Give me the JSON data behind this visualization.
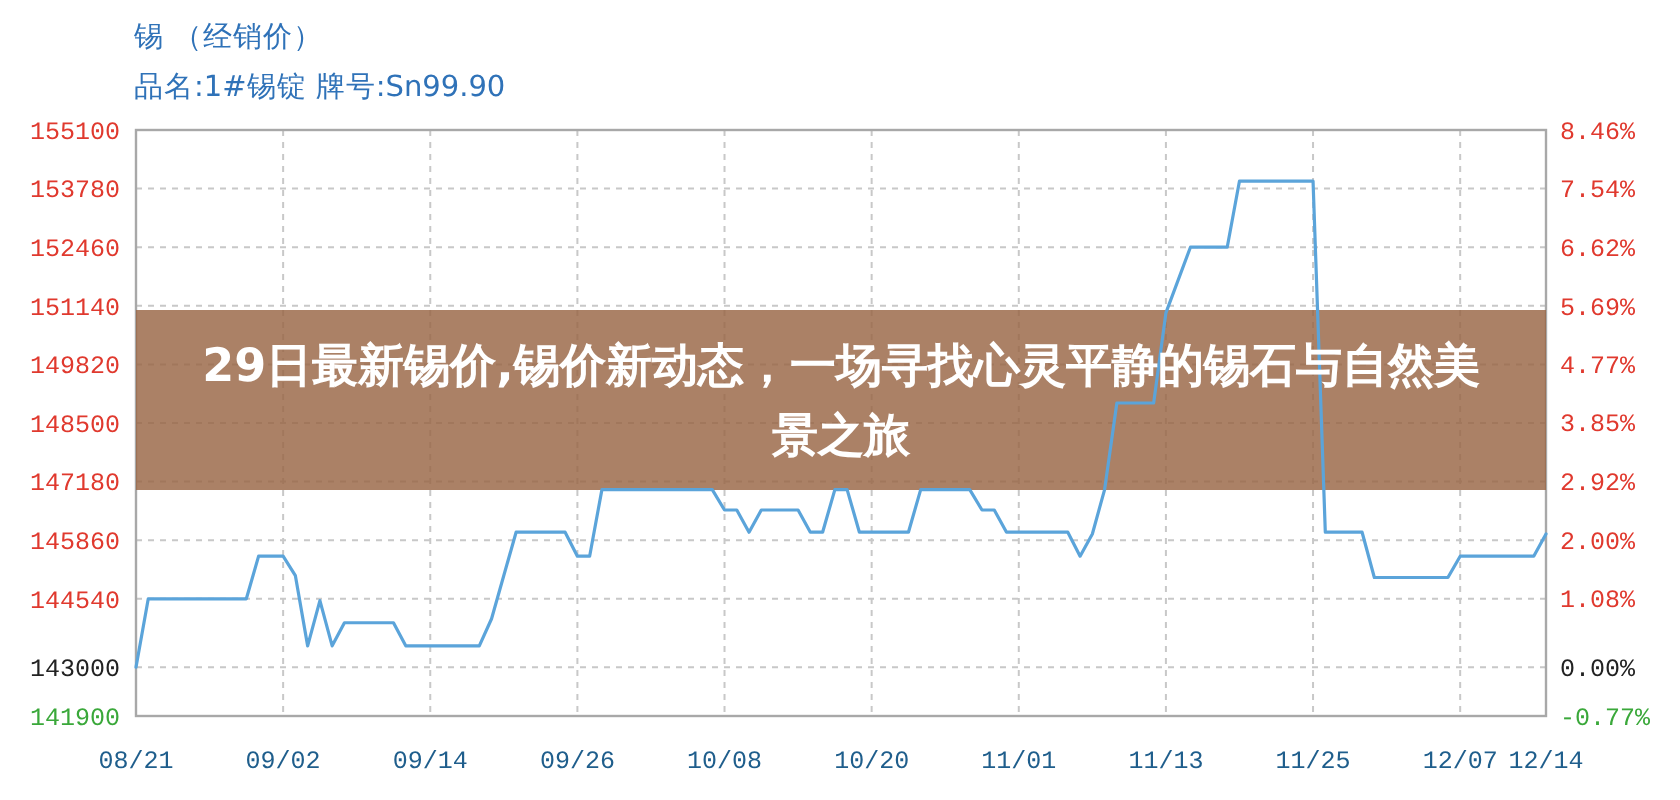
{
  "chart_data": {
    "type": "line",
    "title": "锡 （经销价）",
    "subtitle": "品名:1#锡锭 牌号:Sn99.90",
    "annotations": [
      "29日最新锡价,锡价新动态，一场寻找心灵平静的锡石与自然美景之旅"
    ],
    "x": [
      "--08-21",
      "--08-22",
      "--08-30",
      "--08-31",
      "--09-02",
      "--09-03",
      "--09-04",
      "--09-05",
      "--09-06",
      "--09-07",
      "--09-11",
      "--09-12",
      "--09-18",
      "--09-19",
      "--09-21",
      "--09-25",
      "--09-26",
      "--09-27",
      "--09-28",
      "--10-07",
      "--10-08",
      "--10-09",
      "--10-10",
      "--10-11",
      "--10-14",
      "--10-15",
      "--10-16",
      "--10-17",
      "--10-18",
      "--10-19",
      "--10-23",
      "--10-24",
      "--10-28",
      "--10-29",
      "--10-30",
      "--10-31",
      "--11-05",
      "--11-06",
      "--11-07",
      "--11-08",
      "--11-09",
      "--11-12",
      "--11-13",
      "--11-15",
      "--11-18",
      "--11-19",
      "--11-25",
      "--11-26",
      "--11-29",
      "--11-30",
      "--12-06",
      "--12-07",
      "--12-13",
      "--12-14"
    ],
    "values": [
      143000,
      144540,
      144540,
      145500,
      145500,
      145060,
      143480,
      144500,
      143480,
      144000,
      144000,
      143480,
      143480,
      144090,
      146040,
      146040,
      145500,
      145500,
      147000,
      147000,
      146540,
      146540,
      146040,
      146540,
      146540,
      146040,
      146040,
      147000,
      147000,
      146040,
      146040,
      147000,
      147000,
      146540,
      146540,
      146040,
      146040,
      145500,
      146000,
      147000,
      148950,
      148950,
      150980,
      152460,
      152460,
      153950,
      153950,
      146040,
      146040,
      145020,
      145020,
      145500,
      145500,
      146000
    ],
    "color": "#5ba4da",
    "line_style": "solid",
    "grid": true,
    "xlim": [
      "--08-21",
      "--12-14"
    ],
    "xticks": [
      {
        "value": "--08-21",
        "label": "08/21"
      },
      {
        "value": "--09-02",
        "label": "09/02"
      },
      {
        "value": "--09-14",
        "label": "09/14"
      },
      {
        "value": "--09-26",
        "label": "09/26"
      },
      {
        "value": "--10-08",
        "label": "10/08"
      },
      {
        "value": "--10-20",
        "label": "10/20"
      },
      {
        "value": "--11-01",
        "label": "11/01"
      },
      {
        "value": "--11-13",
        "label": "11/13"
      },
      {
        "value": "--11-25",
        "label": "11/25"
      },
      {
        "value": "--12-07",
        "label": "12/07"
      },
      {
        "value": "--12-14",
        "label": "12/14"
      }
    ],
    "ylim": [
      141900,
      155100
    ],
    "yticks": [
      141900,
      143000,
      144540,
      145860,
      147180,
      148500,
      149820,
      151140,
      152460,
      153780,
      155100
    ],
    "y2lim": [
      -0.77,
      8.46
    ],
    "y2ticks": [
      {
        "value": -0.77,
        "label": "-0.77%"
      },
      {
        "value": 0,
        "label": "0.00%"
      },
      {
        "value": 1.08,
        "label": "1.08%"
      },
      {
        "value": 2.0,
        "label": "2.00%"
      },
      {
        "value": 2.92,
        "label": "2.92%"
      },
      {
        "value": 3.85,
        "label": "3.85%"
      },
      {
        "value": 4.77,
        "label": "4.77%"
      },
      {
        "value": 5.69,
        "label": "5.69%"
      },
      {
        "value": 6.62,
        "label": "6.62%"
      },
      {
        "value": 7.54,
        "label": "7.54%"
      },
      {
        "value": 8.46,
        "label": "8.46%"
      }
    ]
  }
}
